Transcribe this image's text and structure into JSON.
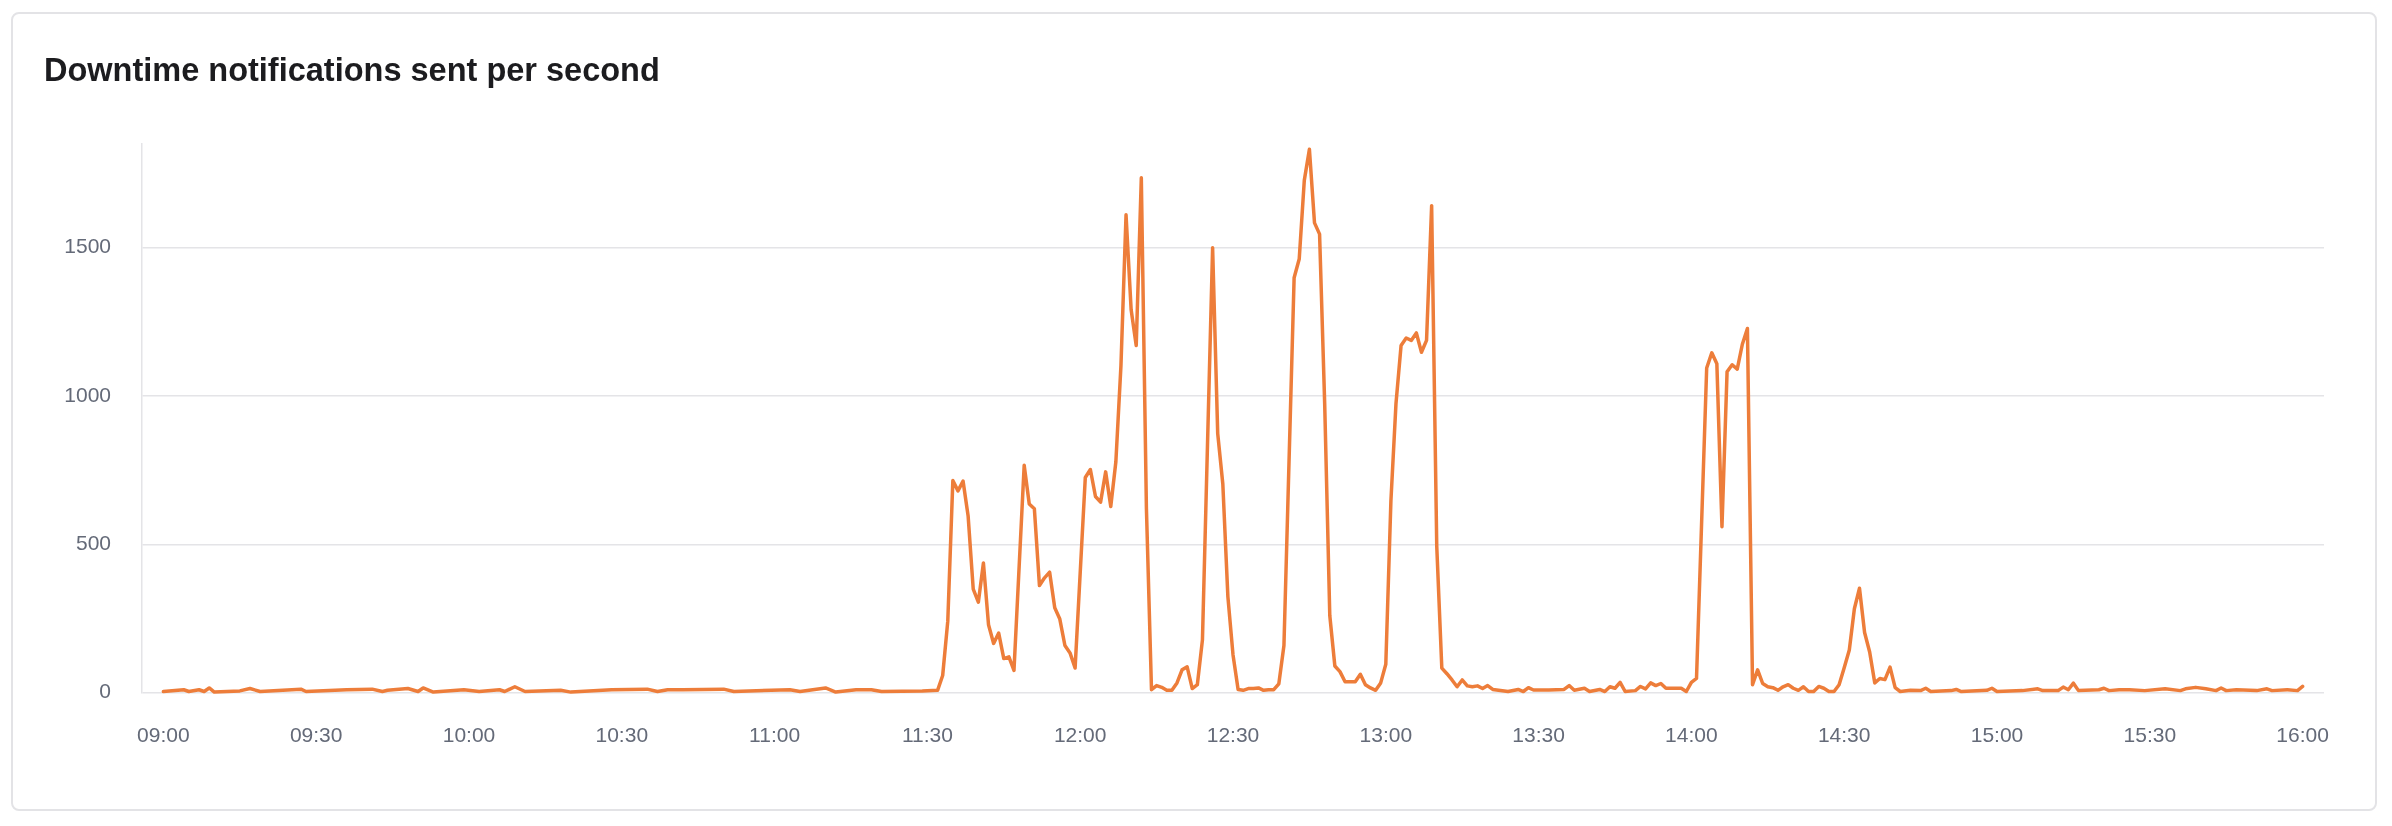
{
  "chart_data": {
    "type": "line",
    "title": "Downtime notifications sent per second",
    "color": "#ed7d3a",
    "x": [
      9,
      9.0667,
      9.0833,
      9.1167,
      9.1333,
      9.15,
      9.1667,
      9.25,
      9.2833,
      9.3167,
      9.45,
      9.4667,
      9.6,
      9.6833,
      9.7167,
      9.7333,
      9.8,
      9.8333,
      9.85,
      9.8833,
      9.9833,
      10.0333,
      10.1,
      10.1167,
      10.15,
      10.1833,
      10.3,
      10.3333,
      10.4667,
      10.5833,
      10.6167,
      10.65,
      10.7,
      10.8333,
      10.8667,
      11.05,
      11.0833,
      11.1667,
      11.2,
      11.2667,
      11.3167,
      11.35,
      11.4833,
      11.5333,
      11.55,
      11.5667,
      11.5833,
      11.6,
      11.6167,
      11.6333,
      11.65,
      11.6667,
      11.6833,
      11.7,
      11.7167,
      11.7333,
      11.75,
      11.7667,
      11.7833,
      11.8167,
      11.8333,
      11.85,
      11.8667,
      11.8833,
      11.9,
      11.9167,
      11.9333,
      11.95,
      11.9667,
      11.9833,
      12.0167,
      12.0333,
      12.05,
      12.0667,
      12.0833,
      12.1,
      12.1167,
      12.1333,
      12.15,
      12.1667,
      12.1833,
      12.2,
      12.2167,
      12.2333,
      12.25,
      12.2667,
      12.2833,
      12.3,
      12.3167,
      12.3333,
      12.35,
      12.3667,
      12.3833,
      12.4,
      12.4333,
      12.45,
      12.4667,
      12.4833,
      12.5,
      12.5167,
      12.5333,
      12.55,
      12.5667,
      12.5833,
      12.6,
      12.6167,
      12.6333,
      12.65,
      12.6667,
      12.7,
      12.7167,
      12.7333,
      12.75,
      12.7667,
      12.7833,
      12.8,
      12.8167,
      12.8333,
      12.85,
      12.8667,
      12.8833,
      12.9,
      12.9167,
      12.9333,
      12.95,
      12.9667,
      12.9833,
      13,
      13.0167,
      13.0333,
      13.05,
      13.0667,
      13.0833,
      13.1,
      13.1167,
      13.1333,
      13.15,
      13.1667,
      13.1833,
      13.2,
      13.2167,
      13.2333,
      13.25,
      13.2667,
      13.2833,
      13.3,
      13.3167,
      13.3333,
      13.35,
      13.4,
      13.4333,
      13.45,
      13.4667,
      13.4833,
      13.5333,
      13.5833,
      13.6,
      13.6167,
      13.65,
      13.6667,
      13.7,
      13.7167,
      13.7333,
      13.75,
      13.7667,
      13.7833,
      13.8167,
      13.8333,
      13.85,
      13.8667,
      13.8833,
      13.9,
      13.9167,
      13.9667,
      13.9833,
      14,
      14.0167,
      14.05,
      14.0667,
      14.0833,
      14.1,
      14.1167,
      14.1333,
      14.15,
      14.1667,
      14.1833,
      14.2,
      14.2167,
      14.2333,
      14.25,
      14.2667,
      14.2833,
      14.3,
      14.3167,
      14.3333,
      14.35,
      14.3667,
      14.3833,
      14.4,
      14.4167,
      14.4333,
      14.45,
      14.4667,
      14.4833,
      14.5,
      14.5167,
      14.5333,
      14.55,
      14.5667,
      14.5833,
      14.6,
      14.6167,
      14.6333,
      14.65,
      14.6667,
      14.6833,
      14.7167,
      14.75,
      14.7667,
      14.7833,
      14.85,
      14.8667,
      14.8833,
      14.95,
      14.9667,
      14.9833,
      15,
      15.0833,
      15.1333,
      15.15,
      15.2,
      15.2167,
      15.2333,
      15.25,
      15.2667,
      15.3333,
      15.35,
      15.3667,
      15.4,
      15.4333,
      15.4833,
      15.55,
      15.6,
      15.6167,
      15.65,
      15.6833,
      15.7167,
      15.7333,
      15.75,
      15.7833,
      15.85,
      15.8833,
      15.9,
      15.95,
      15.9833,
      16
    ],
    "values": [
      4,
      10,
      4,
      10,
      4,
      16,
      2,
      6,
      14,
      4,
      12,
      4,
      10,
      12,
      4,
      8,
      14,
      4,
      16,
      2,
      10,
      4,
      10,
      4,
      20,
      4,
      8,
      2,
      10,
      12,
      4,
      10,
      10,
      12,
      4,
      10,
      4,
      16,
      2,
      10,
      10,
      4,
      6,
      8,
      58,
      241,
      715,
      680,
      713,
      595,
      349,
      305,
      437,
      229,
      166,
      201,
      115,
      121,
      75,
      766,
      636,
      620,
      361,
      387,
      406,
      286,
      248,
      159,
      134,
      83,
      725,
      752,
      661,
      642,
      744,
      627,
      778,
      1101,
      1610,
      1290,
      1170,
      1735,
      620,
      10,
      24,
      18,
      8,
      8,
      33,
      77,
      87,
      14,
      27,
      178,
      1499,
      873,
      703,
      323,
      128,
      11,
      8,
      14,
      14,
      16,
      8,
      10,
      10,
      30,
      159,
      1398,
      1461,
      1726,
      1831,
      1583,
      1545,
      974,
      260,
      90,
      71,
      37,
      37,
      37,
      62,
      27,
      16,
      8,
      33,
      96,
      646,
      974,
      1170,
      1195,
      1187,
      1212,
      1147,
      1187,
      1641,
      494,
      83,
      64,
      43,
      20,
      43,
      23,
      20,
      23,
      14,
      24,
      11,
      4,
      11,
      4,
      17,
      9,
      9,
      11,
      24,
      8,
      15,
      4,
      11,
      4,
      20,
      15,
      35,
      4,
      7,
      21,
      13,
      33,
      24,
      31,
      15,
      15,
      4,
      35,
      48,
      1094,
      1145,
      1108,
      559,
      1081,
      1105,
      1090,
      1174,
      1227,
      27,
      77,
      31,
      20,
      17,
      8,
      20,
      27,
      15,
      8,
      20,
      4,
      4,
      21,
      15,
      4,
      4,
      27,
      84,
      144,
      283,
      352,
      203,
      137,
      33,
      48,
      44,
      86,
      17,
      4,
      8,
      7,
      15,
      4,
      7,
      11,
      4,
      7,
      8,
      15,
      4,
      7,
      13,
      7,
      7,
      19,
      10,
      32,
      7,
      10,
      15,
      7,
      10,
      10,
      7,
      13,
      7,
      13,
      18,
      13,
      7,
      16,
      7,
      10,
      7,
      13,
      7,
      10,
      7,
      21
    ],
    "xlim": [
      8.93,
      16.07
    ],
    "ylim": [
      0,
      1850
    ],
    "xticks": [
      {
        "value": 9,
        "label": "09:00"
      },
      {
        "value": 9.5,
        "label": "09:30"
      },
      {
        "value": 10,
        "label": "10:00"
      },
      {
        "value": 10.5,
        "label": "10:30"
      },
      {
        "value": 11,
        "label": "11:00"
      },
      {
        "value": 11.5,
        "label": "11:30"
      },
      {
        "value": 12,
        "label": "12:00"
      },
      {
        "value": 12.5,
        "label": "12:30"
      },
      {
        "value": 13,
        "label": "13:00"
      },
      {
        "value": 13.5,
        "label": "13:30"
      },
      {
        "value": 14,
        "label": "14:00"
      },
      {
        "value": 14.5,
        "label": "14:30"
      },
      {
        "value": 15,
        "label": "15:00"
      },
      {
        "value": 15.5,
        "label": "15:30"
      },
      {
        "value": 16,
        "label": "16:00"
      }
    ],
    "yticks": [
      0,
      500,
      1000,
      1500
    ],
    "grid": "y"
  }
}
